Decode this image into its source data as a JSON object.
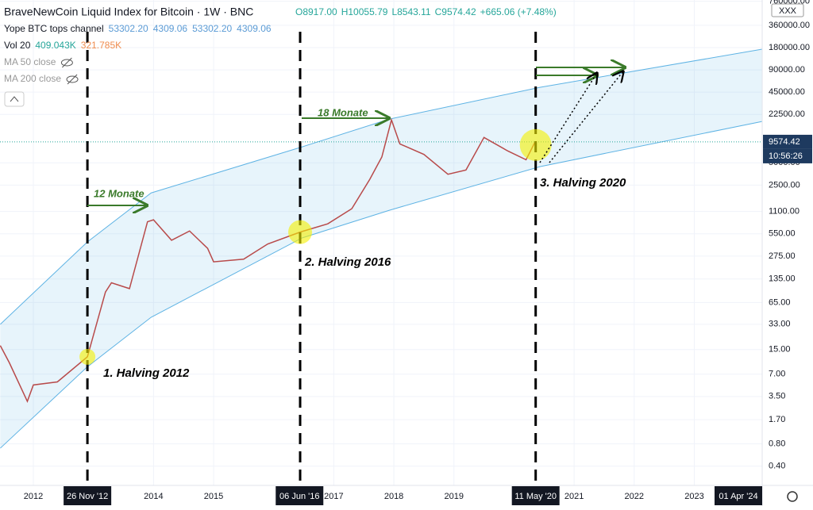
{
  "chart_data": {
    "type": "line",
    "title": "BraveNewCoin Liquid Index for Bitcoin · 1W · BNC",
    "ohlc": [
      "O8917.00",
      "H10055.79",
      "L8543.11",
      "C9574.42",
      "+665.06 (+7.48%)"
    ],
    "indicators": [
      {
        "name": "Yope BTC tops channel",
        "values": [
          "53302.20",
          "4309.06",
          "53302.20",
          "4309.06"
        ]
      },
      {
        "name": "Vol 20",
        "values": [
          "409.043K",
          "321.785K"
        ]
      },
      {
        "name": "MA 50 close",
        "values": []
      },
      {
        "name": "MA 200 close",
        "values": []
      }
    ],
    "symbol": "XXX",
    "countdown": "10:56:26",
    "log_scale": true,
    "grid": true,
    "xlim": [
      2011.445,
      2024.13
    ],
    "ylim": [
      0.22,
      790000
    ],
    "xticks": [
      2012,
      2014,
      2015,
      2017,
      2018,
      2019,
      2021,
      2022,
      2023
    ],
    "yticks": [
      {
        "value": 760000,
        "label": "760000.00"
      },
      {
        "value": 360000,
        "label": "360000.00"
      },
      {
        "value": 180000,
        "label": "180000.00"
      },
      {
        "value": 90000,
        "label": "90000.00"
      },
      {
        "value": 45000,
        "label": "45000.00"
      },
      {
        "value": 22500,
        "label": "22500.00"
      },
      {
        "value": 5000,
        "label": "5000.00"
      },
      {
        "value": 2500,
        "label": "2500.00"
      },
      {
        "value": 1100,
        "label": "1100.00"
      },
      {
        "value": 550,
        "label": "550.00"
      },
      {
        "value": 275,
        "label": "275.00"
      },
      {
        "value": 135,
        "label": "135.00"
      },
      {
        "value": 65,
        "label": "65.00"
      },
      {
        "value": 33,
        "label": "33.00"
      },
      {
        "value": 15,
        "label": "15.00"
      },
      {
        "value": 7,
        "label": "7.00"
      },
      {
        "value": 3.5,
        "label": "3.50"
      },
      {
        "value": 1.7,
        "label": "1.70"
      },
      {
        "value": 0.8,
        "label": "0.80"
      },
      {
        "value": 0.4,
        "label": "0.40"
      }
    ],
    "last_price": 9574.42,
    "date_markers": [
      {
        "value": 2012.9,
        "label": "26 Nov '12"
      },
      {
        "value": 2016.43,
        "label": "06 Jun '16"
      },
      {
        "value": 2020.36,
        "label": "11 May '20"
      },
      {
        "value": 2024.25,
        "label": "01 Apr '24"
      }
    ],
    "series": [
      {
        "name": "BTC",
        "color": "#b84a4a",
        "x": [
          2011.45,
          2011.6,
          2011.9,
          2012.0,
          2012.4,
          2012.9,
          2013.2,
          2013.3,
          2013.6,
          2013.9,
          2014.0,
          2014.3,
          2014.6,
          2014.9,
          2015.0,
          2015.5,
          2015.9,
          2016.44,
          2016.9,
          2017.3,
          2017.6,
          2017.8,
          2017.96,
          2018.1,
          2018.5,
          2018.9,
          2019.2,
          2019.5,
          2019.9,
          2020.2,
          2020.35
        ],
        "values": [
          17,
          10,
          3,
          5,
          5.5,
          12,
          90,
          120,
          100,
          800,
          850,
          450,
          600,
          350,
          230,
          250,
          400,
          580,
          750,
          1200,
          3000,
          6000,
          19000,
          9000,
          6500,
          3500,
          4000,
          11000,
          7200,
          5500,
          9574.42
        ]
      }
    ],
    "channel": {
      "color": "#5eb3e4",
      "x": [
        2011.45,
        2012.9,
        2013.96,
        2016.47,
        2017.92,
        2020.43,
        2024.13
      ],
      "upper": [
        33,
        427,
        1960,
        8200,
        19400,
        52300,
        171000
      ],
      "lower": [
        0.7,
        8.8,
        41,
        483,
        1140,
        4440,
        18100
      ]
    },
    "halvings": [
      {
        "x": 2012.9,
        "price": 12,
        "label": "1. Halving 2012"
      },
      {
        "x": 2016.44,
        "price": 580,
        "label": "2. Halving 2016"
      },
      {
        "x": 2020.36,
        "price": 8700,
        "label": "3. Halving 2020"
      }
    ],
    "annotations": [
      "12 Monate",
      "18 Monate"
    ]
  }
}
